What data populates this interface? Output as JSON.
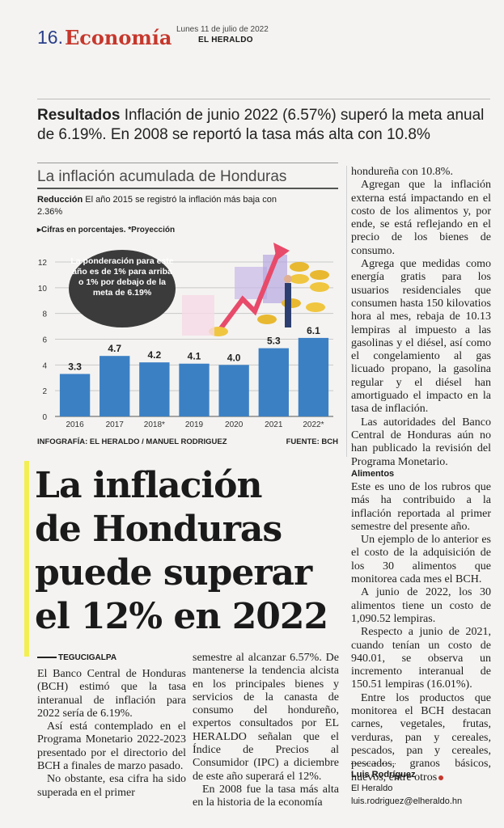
{
  "header": {
    "page_number": "16.",
    "section": "Economía",
    "date": "Lunes 11 de julio de 2022",
    "paper": "EL HERALDO"
  },
  "subhead": {
    "lead": "Resultados",
    "text": "Inflación de junio 2022 (6.57%) superó la meta anual de 6.19%. En 2008 se reportó la tasa más alta con 10.8%"
  },
  "infographic": {
    "title": "La inflación acumulada de Honduras",
    "lead_label": "Reducción",
    "lead_text": "El año 2015 se registró la inflación más baja con 2.36%",
    "note": "Cifras en porcentajes. *Proyección",
    "callout": "La ponderación para este año es de 1% para arriba o 1% por debajo de la meta de 6.19%",
    "credit_left": "INFOGRAFÍA: EL HERALDO / MANUEL RODRIGUEZ",
    "credit_right": "FUENTE: BCH"
  },
  "chart_data": {
    "type": "bar",
    "categories": [
      "2016",
      "2017",
      "2018*",
      "2019",
      "2020",
      "2021",
      "2022*"
    ],
    "values": [
      3.3,
      4.7,
      4.2,
      4.1,
      4.0,
      5.3,
      6.1
    ],
    "value_labels": [
      "3.3",
      "4.7",
      "4.2",
      "4.1",
      "4.0",
      "5.3",
      "6.1"
    ],
    "y_ticks": [
      "0",
      "2",
      "4",
      "6",
      "8",
      "10",
      "12"
    ],
    "ylim": [
      0,
      12
    ],
    "grid": true,
    "bar_color": "#3c80c4"
  },
  "headline": {
    "lines": [
      "La inflación",
      "de Honduras",
      "puede superar",
      "el 12% en 2022"
    ]
  },
  "dateline": "TEGUCIGALPA",
  "body": {
    "col1": [
      "El Banco Central de Honduras (BCH) estimó que la tasa interanual de inflación para 2022 sería de 6.19%.",
      "Así está contemplado en el Programa Monetario 2022-2023 presentado por el directorio del BCH a finales de marzo pasado.",
      "No obstante, esa cifra ha sido superada en el primer"
    ],
    "col2": [
      "semestre al alcanzar 6.57%. De mantenerse la tendencia alcista en los principales bienes y servicios de la canasta de consumo del hondureño, expertos consultados por EL HERALDO señalan que el Índice de Precios al Consumidor (IPC) a diciembre de este año superará el 12%.",
      "En 2008 fue la tasa más alta en la historia de la economía"
    ],
    "col3": [
      "hondureña con 10.8%.",
      "Agregan que la inflación externa está impactando en el costo de los alimentos y, por ende, se está reflejando en el precio de los bienes de consumo.",
      "Agrega que medidas como energía gratis para los usuarios residenciales que consumen hasta 150 kilovatios hora al mes, rebaja de 10.13 lempiras al impuesto a las gasolinas y el diésel, así como el congelamiento al gas licuado propano, la gasolina regular y el diésel han amortiguado el impacto en la tasa de inflación.",
      "Las autoridades del Banco Central de Honduras aún no han publicado la revisión del Programa Monetario."
    ],
    "alimentos_heading": "Alimentos",
    "col3b": [
      "Este es uno de los rubros que más ha contribuido a la inflación reportada al primer semestre del presente año.",
      "Un ejemplo de lo anterior es el costo de la adquisición de los 30 alimentos que monitorea cada mes el BCH.",
      "A junio de 2022, los 30 alimentos tiene un costo de 1,090.52 lempiras.",
      "Respecto a junio de 2021, cuando tenían un costo de 940.01, se observa un incremento interanual de 150.51 lempiras (16.01%).",
      "Entre los productos que monitorea el BCH destacan carnes, vegetales, frutas, verduras, pan y cereales, pescados, pan y cereales, pescados, granos básicos, huevos, entre otros"
    ]
  },
  "byline": {
    "name": "Luis Rodríguez",
    "org": "El Heraldo",
    "email": "luis.rodriguez@elheraldo.hn"
  }
}
